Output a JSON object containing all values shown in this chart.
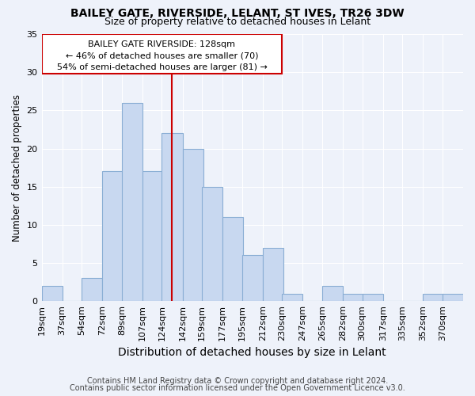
{
  "title1": "BAILEY GATE, RIVERSIDE, LELANT, ST IVES, TR26 3DW",
  "title2": "Size of property relative to detached houses in Lelant",
  "xlabel": "Distribution of detached houses by size in Lelant",
  "ylabel": "Number of detached properties",
  "footnote1": "Contains HM Land Registry data © Crown copyright and database right 2024.",
  "footnote2": "Contains public sector information licensed under the Open Government Licence v3.0.",
  "annotation_line1": "BAILEY GATE RIVERSIDE: 128sqm",
  "annotation_line2": "← 46% of detached houses are smaller (70)",
  "annotation_line3": "54% of semi-detached houses are larger (81) →",
  "bar_color": "#c8d8f0",
  "bar_edge_color": "#8aaed4",
  "vline_color": "#cc0000",
  "vline_x": 124,
  "annotation_box_edgecolor": "#cc0000",
  "categories": [
    "19sqm",
    "37sqm",
    "54sqm",
    "72sqm",
    "89sqm",
    "107sqm",
    "124sqm",
    "142sqm",
    "159sqm",
    "177sqm",
    "195sqm",
    "212sqm",
    "230sqm",
    "247sqm",
    "265sqm",
    "282sqm",
    "300sqm",
    "317sqm",
    "335sqm",
    "352sqm",
    "370sqm"
  ],
  "bin_left": [
    10,
    28,
    45,
    63,
    80,
    98,
    115,
    133,
    150,
    168,
    185,
    203,
    220,
    238,
    255,
    273,
    290,
    308,
    325,
    343,
    360
  ],
  "bin_width": 18,
  "values": [
    2,
    0,
    3,
    17,
    26,
    17,
    22,
    20,
    15,
    11,
    6,
    7,
    1,
    0,
    2,
    1,
    1,
    0,
    0,
    1,
    1
  ],
  "ylim": [
    0,
    35
  ],
  "yticks": [
    0,
    5,
    10,
    15,
    20,
    25,
    30,
    35
  ],
  "background_color": "#eef2fa",
  "grid_color": "#ffffff",
  "title1_fontsize": 10,
  "title2_fontsize": 9,
  "xlabel_fontsize": 10,
  "ylabel_fontsize": 8.5,
  "tick_fontsize": 8,
  "footnote_fontsize": 7,
  "ann_fontsize": 8
}
